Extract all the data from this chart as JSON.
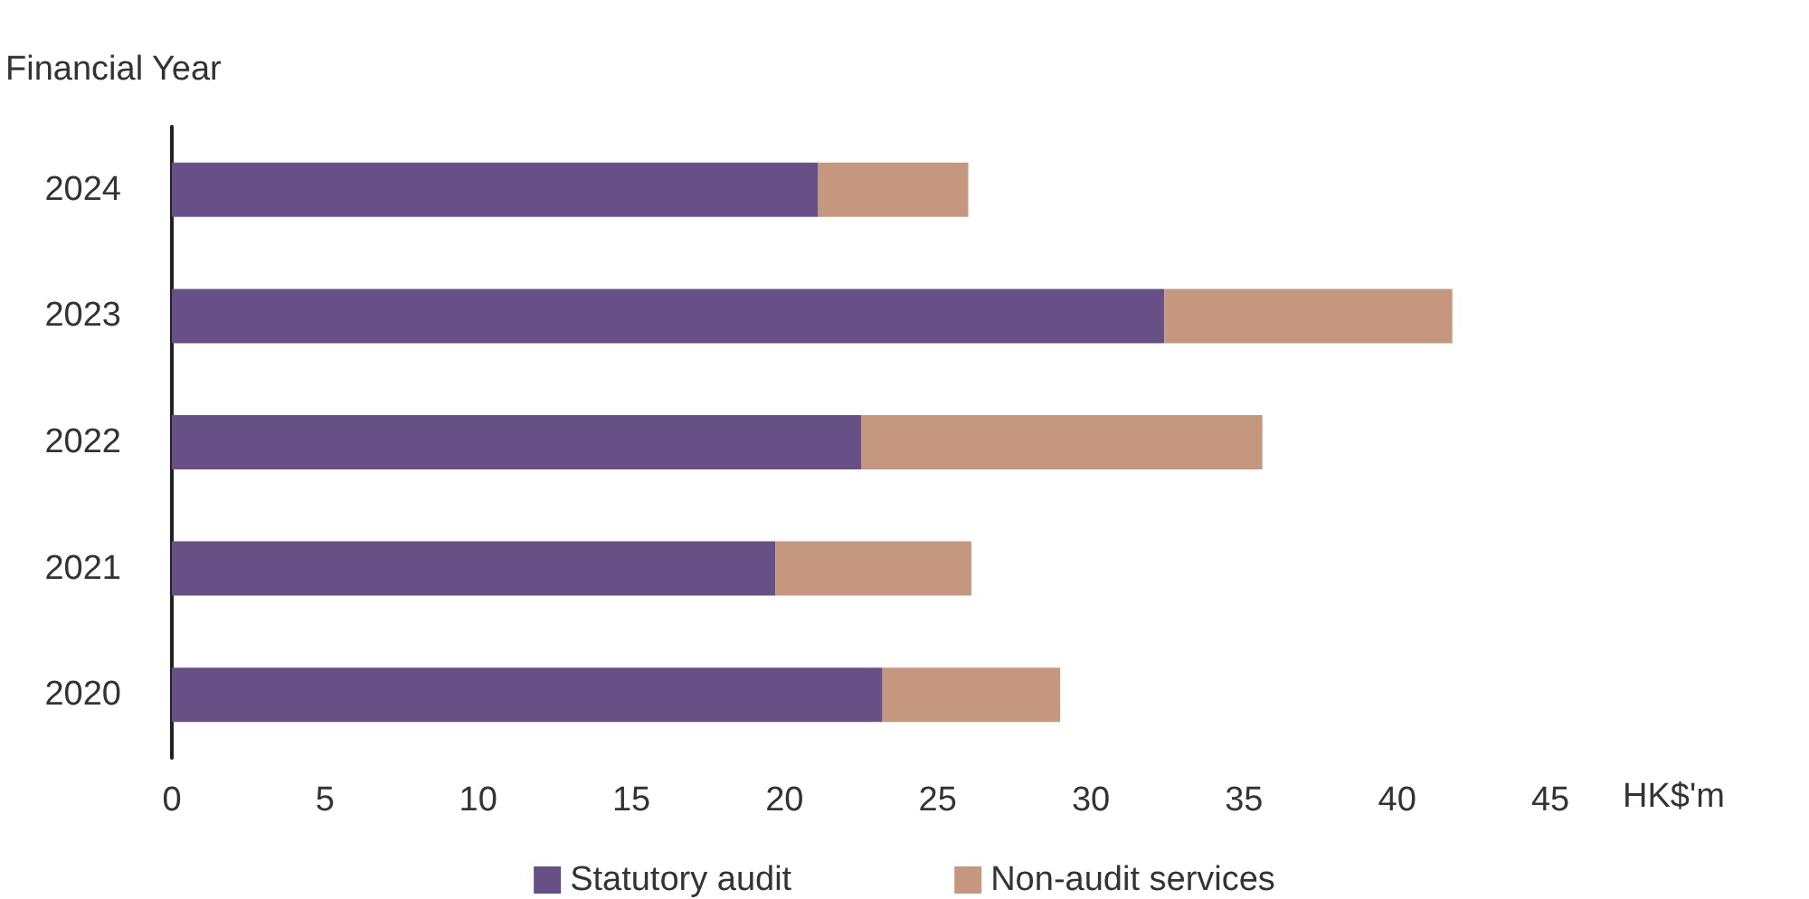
{
  "chart_data": {
    "type": "bar",
    "orientation": "horizontal",
    "stacked": true,
    "ylabel": "Financial Year",
    "xlabel": "HK$'m",
    "categories": [
      "2024",
      "2023",
      "2022",
      "2021",
      "2020"
    ],
    "series": [
      {
        "name": "Statutory audit",
        "color": "#675086",
        "values": [
          21.1,
          32.4,
          22.5,
          19.7,
          23.2
        ]
      },
      {
        "name": "Non-audit services",
        "color": "#c5977e",
        "values": [
          4.9,
          9.4,
          13.1,
          6.4,
          5.8
        ]
      }
    ],
    "xlim": [
      0,
      45
    ],
    "xticks": [
      0,
      5,
      10,
      15,
      20,
      25,
      30,
      35,
      40,
      45
    ],
    "grid": false,
    "legend": "bottom"
  }
}
